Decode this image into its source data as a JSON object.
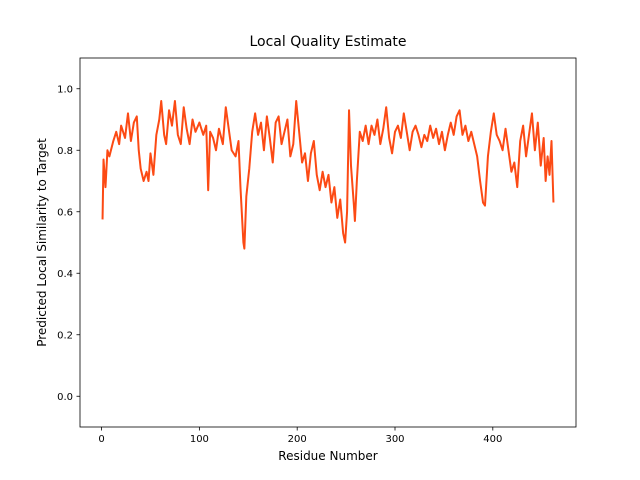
{
  "chart_data": {
    "type": "line",
    "title": "Local Quality Estimate",
    "xlabel": "Residue Number",
    "ylabel": "Predicted Local Similarity to Target",
    "xlim": [
      -22.05,
      485.05
    ],
    "ylim": [
      -0.1,
      1.1
    ],
    "xticks": [
      0,
      100,
      200,
      300,
      400
    ],
    "yticks": [
      {
        "value": 0.0,
        "label": "0.0"
      },
      0.2,
      0.4,
      0.6,
      0.8,
      {
        "value": 1.0,
        "label": "1.0"
      }
    ],
    "series": [
      {
        "color": "#fc4a14",
        "x": [
          1,
          2,
          4,
          6,
          8,
          12,
          15,
          18,
          20,
          24,
          27,
          30,
          33,
          36,
          38,
          40,
          43,
          46,
          48,
          50,
          53,
          56,
          59,
          61,
          64,
          66,
          69,
          72,
          75,
          78,
          81,
          84,
          87,
          90,
          93,
          96,
          100,
          104,
          107,
          109,
          111,
          114,
          117,
          120,
          124,
          127,
          130,
          133,
          137,
          140,
          142,
          145,
          146,
          148,
          151,
          154,
          157,
          160,
          163,
          166,
          169,
          172,
          175,
          178,
          181,
          184,
          187,
          190,
          193,
          196,
          199,
          202,
          205,
          208,
          211,
          214,
          217,
          220,
          223,
          226,
          229,
          232,
          235,
          238,
          241,
          244,
          247,
          249,
          251,
          253,
          255,
          258,
          259,
          261,
          264,
          267,
          270,
          273,
          276,
          279,
          282,
          285,
          288,
          291,
          294,
          297,
          300,
          303,
          306,
          309,
          312,
          315,
          318,
          321,
          324,
          327,
          330,
          333,
          336,
          339,
          342,
          345,
          348,
          351,
          354,
          357,
          360,
          363,
          366,
          369,
          372,
          375,
          378,
          381,
          384,
          387,
          390,
          392,
          395,
          398,
          401,
          404,
          407,
          410,
          413,
          416,
          419,
          422,
          425,
          428,
          431,
          434,
          437,
          440,
          443,
          446,
          449,
          452,
          454,
          456,
          458,
          460,
          462
        ],
        "values": [
          0.575,
          0.77,
          0.68,
          0.8,
          0.78,
          0.83,
          0.86,
          0.82,
          0.88,
          0.84,
          0.92,
          0.83,
          0.89,
          0.91,
          0.8,
          0.74,
          0.7,
          0.73,
          0.7,
          0.79,
          0.72,
          0.85,
          0.9,
          0.96,
          0.85,
          0.82,
          0.93,
          0.88,
          0.96,
          0.85,
          0.82,
          0.94,
          0.87,
          0.82,
          0.9,
          0.86,
          0.89,
          0.85,
          0.88,
          0.67,
          0.86,
          0.84,
          0.8,
          0.87,
          0.82,
          0.94,
          0.87,
          0.8,
          0.78,
          0.83,
          0.68,
          0.5,
          0.48,
          0.65,
          0.74,
          0.86,
          0.92,
          0.85,
          0.89,
          0.8,
          0.91,
          0.84,
          0.76,
          0.89,
          0.91,
          0.82,
          0.86,
          0.9,
          0.78,
          0.82,
          0.96,
          0.86,
          0.76,
          0.79,
          0.7,
          0.79,
          0.83,
          0.72,
          0.67,
          0.73,
          0.68,
          0.72,
          0.63,
          0.68,
          0.58,
          0.64,
          0.53,
          0.5,
          0.6,
          0.93,
          0.75,
          0.62,
          0.57,
          0.7,
          0.86,
          0.83,
          0.88,
          0.82,
          0.88,
          0.85,
          0.9,
          0.82,
          0.87,
          0.94,
          0.84,
          0.79,
          0.86,
          0.88,
          0.84,
          0.92,
          0.86,
          0.8,
          0.86,
          0.88,
          0.85,
          0.81,
          0.85,
          0.83,
          0.88,
          0.84,
          0.87,
          0.82,
          0.86,
          0.8,
          0.85,
          0.89,
          0.85,
          0.91,
          0.93,
          0.85,
          0.88,
          0.83,
          0.86,
          0.82,
          0.78,
          0.7,
          0.63,
          0.62,
          0.78,
          0.86,
          0.92,
          0.85,
          0.83,
          0.8,
          0.87,
          0.8,
          0.73,
          0.76,
          0.68,
          0.83,
          0.88,
          0.78,
          0.85,
          0.92,
          0.8,
          0.89,
          0.75,
          0.84,
          0.7,
          0.78,
          0.72,
          0.83,
          0.63
        ]
      }
    ]
  }
}
